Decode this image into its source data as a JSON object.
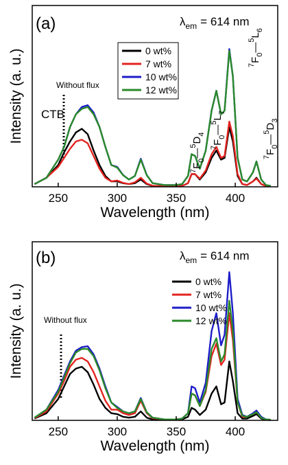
{
  "chart_data": [
    {
      "type": "line",
      "panel_label": "(a)",
      "emission": {
        "symbol": "λ",
        "subscript": "em",
        "rest": "= 614 nm"
      },
      "annotations": {
        "flux": "Without flux",
        "ctb": "CTB"
      },
      "transitions": [
        [
          "7",
          "F",
          "0",
          "—",
          "5",
          "D",
          "4"
        ],
        [
          "7",
          "F",
          "0",
          "—",
          "5",
          "L",
          "7"
        ],
        [
          "7",
          "F",
          "0",
          "—",
          "5",
          "L",
          "6"
        ],
        [
          "7",
          "F",
          "0",
          "—",
          "5",
          "D",
          "3"
        ]
      ],
      "x_label": "Wavelength (nm)",
      "y_label": "Intensity (a. u.)",
      "xlim": [
        228,
        436
      ],
      "xticks": [
        250,
        300,
        350,
        400
      ],
      "ylim": [
        0,
        100
      ],
      "legend_frame": true,
      "x": [
        230,
        240,
        250,
        255,
        260,
        265,
        270,
        275,
        280,
        285,
        290,
        295,
        300,
        305,
        310,
        315,
        320,
        325,
        330,
        340,
        350,
        355,
        360,
        363,
        366,
        370,
        375,
        380,
        384,
        388,
        391,
        395,
        398,
        402,
        406,
        410,
        415,
        418,
        422,
        426,
        430
      ],
      "series": [
        {
          "name": "0 wt%",
          "color": "#000000",
          "values": [
            1.5,
            5,
            12,
            19,
            25,
            30,
            32,
            29,
            20,
            12,
            6,
            3,
            3,
            2,
            1.5,
            2,
            4,
            1.5,
            0.5,
            0.3,
            0.3,
            0.5,
            2,
            7,
            7,
            4,
            8,
            16,
            20,
            15,
            16,
            33,
            25,
            6,
            1.5,
            1,
            3,
            5,
            1.5,
            0.5,
            0.3
          ]
        },
        {
          "name": "7 wt%",
          "color": "#e3231f",
          "values": [
            1.5,
            5,
            11,
            16,
            21,
            25,
            26,
            24,
            17,
            10,
            5,
            3,
            3.5,
            2.2,
            1.5,
            2.5,
            5,
            1.8,
            0.6,
            0.3,
            0.3,
            0.5,
            2,
            7,
            7,
            4.5,
            9,
            18,
            22,
            16,
            17,
            36,
            28,
            7,
            1.5,
            1,
            3,
            4.5,
            1.5,
            0.5,
            0.3
          ]
        },
        {
          "name": "10 wt%",
          "color": "#1c1cc8",
          "values": [
            1.5,
            5,
            15,
            22,
            33,
            40,
            44,
            45,
            41,
            33,
            22,
            12,
            11,
            6.5,
            4,
            6,
            15.5,
            6.5,
            2,
            1,
            1,
            1.5,
            6,
            18,
            17,
            10,
            20,
            42,
            53,
            40,
            42,
            76,
            61,
            16,
            4,
            3,
            8,
            14,
            4,
            1,
            0.5
          ]
        },
        {
          "name": "12 wt%",
          "color": "#2a8a2a",
          "values": [
            1.5,
            5,
            15,
            22,
            33,
            40,
            43,
            44,
            40,
            33,
            22,
            12,
            10.6,
            6.4,
            4,
            6,
            15,
            6.4,
            2,
            1,
            1,
            1.5,
            6,
            18,
            17,
            10,
            20,
            42,
            53,
            40,
            42,
            75,
            61,
            16,
            4,
            3,
            8,
            14,
            4,
            1,
            0.5
          ]
        }
      ]
    },
    {
      "type": "line",
      "panel_label": "(b)",
      "emission": {
        "symbol": "λ",
        "subscript": "em",
        "rest": "= 614 nm"
      },
      "annotations": {
        "flux": "Without flux"
      },
      "x_label": "Wavelength (nm)",
      "y_label": "Intensity (a. u.)",
      "xlim": [
        228,
        436
      ],
      "xticks": [
        250,
        300,
        350,
        400
      ],
      "ylim": [
        0,
        100
      ],
      "legend_frame": false,
      "x": [
        230,
        240,
        250,
        255,
        260,
        265,
        270,
        275,
        280,
        285,
        290,
        295,
        300,
        305,
        310,
        315,
        320,
        325,
        330,
        340,
        350,
        355,
        360,
        363,
        366,
        370,
        375,
        380,
        384,
        388,
        391,
        395,
        398,
        402,
        406,
        410,
        415,
        418,
        422,
        426,
        430
      ],
      "series": [
        {
          "name": "0 wt%",
          "color": "#000000",
          "values": [
            1,
            4,
            12,
            19,
            26,
            29,
            30,
            27,
            20,
            12,
            7,
            4,
            3.5,
            2,
            1.5,
            2,
            5,
            1.5,
            0.5,
            0.3,
            0.3,
            0.5,
            2,
            7,
            6,
            3,
            6,
            15,
            19,
            9,
            10,
            33,
            22,
            4,
            1,
            1,
            2.5,
            3.5,
            1,
            0.3,
            0.2
          ]
        },
        {
          "name": "7 wt%",
          "color": "#e3231f",
          "values": [
            1.2,
            5,
            15,
            22,
            30,
            34,
            35,
            33,
            27,
            19,
            11,
            6,
            6,
            4,
            3,
            4,
            11,
            4,
            1.2,
            0.5,
            0.5,
            1,
            4,
            15,
            14,
            8,
            16,
            36,
            43,
            31,
            34,
            60,
            45,
            10,
            2,
            2,
            3.5,
            4.5,
            1.5,
            0.5,
            0.3
          ]
        },
        {
          "name": "10 wt%",
          "color": "#1c1cc8",
          "values": [
            1.5,
            6,
            17,
            25,
            33,
            39,
            41,
            41.5,
            37,
            29,
            19,
            10,
            7.5,
            5,
            4,
            5,
            12.5,
            4.5,
            1.5,
            0.5,
            0.5,
            1,
            4,
            19,
            18,
            10,
            21,
            50,
            60,
            42,
            48,
            83,
            60,
            12,
            3,
            2,
            4,
            5.5,
            2,
            0.5,
            0.3
          ]
        },
        {
          "name": "12 wt%",
          "color": "#2a8a2a",
          "values": [
            1.5,
            6,
            16,
            24,
            32,
            38,
            40,
            40,
            36,
            28,
            18,
            10,
            7,
            5,
            4,
            5,
            12,
            4.5,
            1.5,
            0.5,
            0.5,
            1,
            4,
            15,
            14,
            8,
            17,
            40,
            46,
            33,
            37,
            67,
            50,
            10,
            2.5,
            2,
            3.5,
            4.6,
            1.5,
            0.5,
            0.3
          ]
        }
      ]
    }
  ]
}
